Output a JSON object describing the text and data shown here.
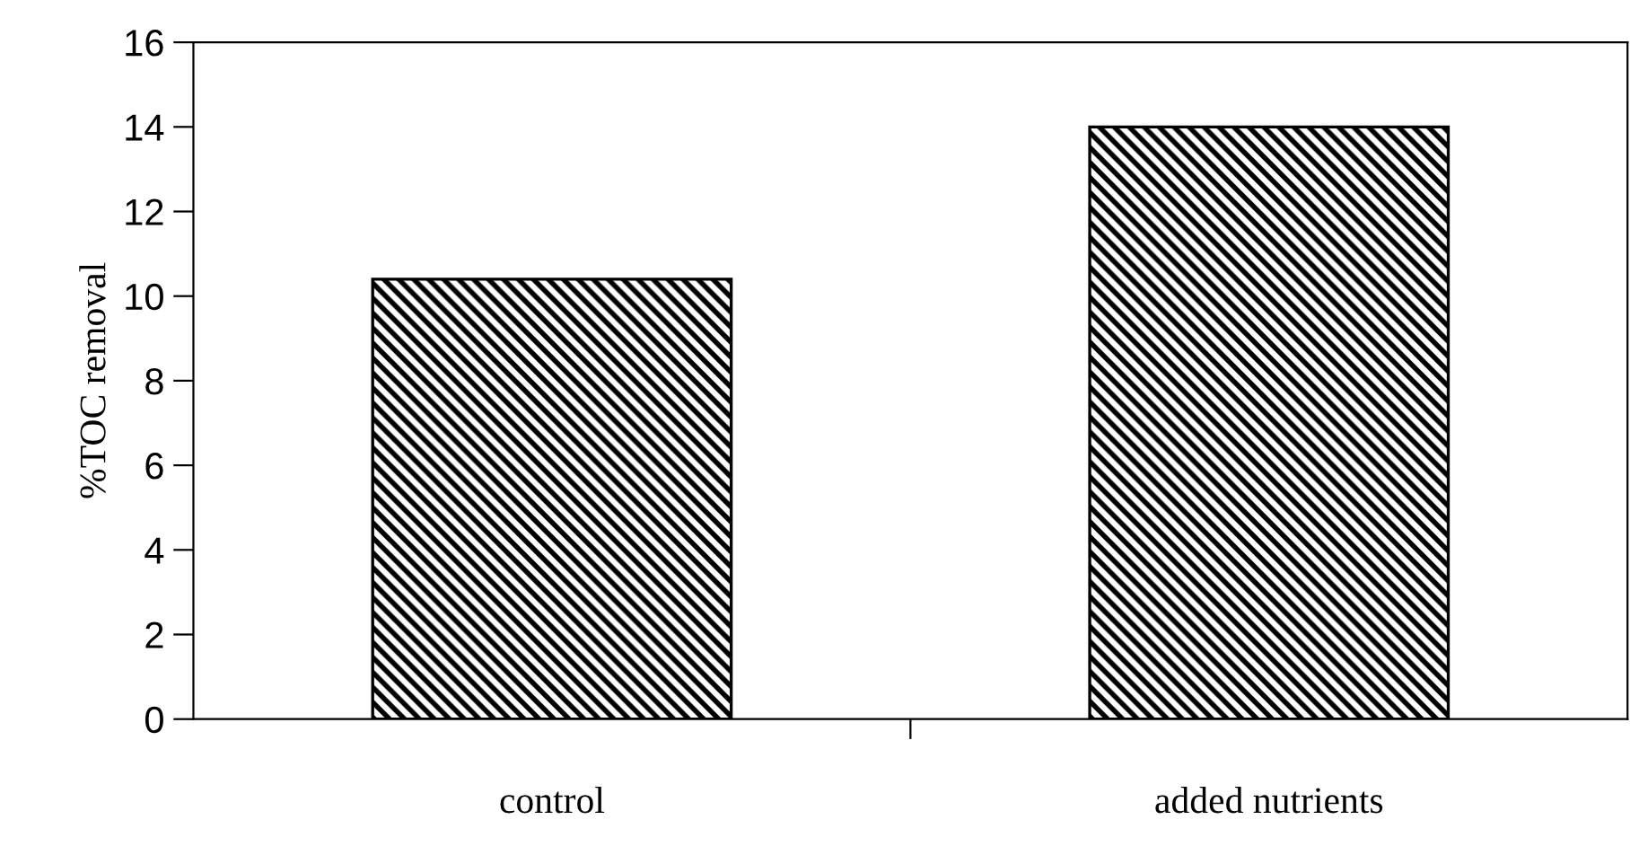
{
  "chart_data": {
    "type": "bar",
    "ylabel": "%TOC removal",
    "categories": [
      "control",
      "added nutrients"
    ],
    "values": [
      10.4,
      14.0
    ],
    "color": "#000000",
    "ylim": [
      0,
      16
    ],
    "yticks": [
      0,
      2,
      4,
      6,
      8,
      10,
      12,
      14,
      16
    ],
    "grid": false,
    "legend": false
  }
}
